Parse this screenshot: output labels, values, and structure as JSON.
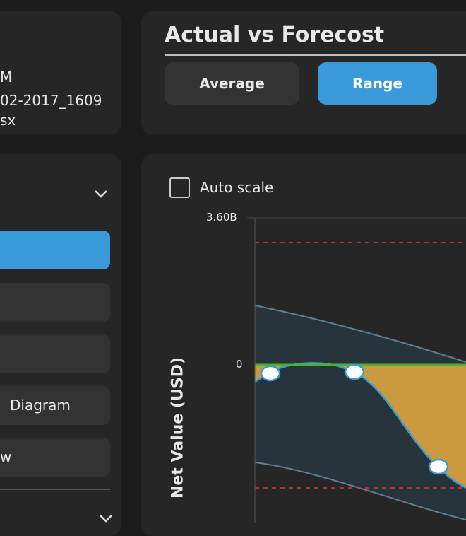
{
  "file_panel": {
    "lines": [
      "M",
      "02-2017_1609",
      "sx"
    ]
  },
  "header": {
    "title": "Actual vs Forecost",
    "buttons": [
      "Average",
      "Range"
    ]
  },
  "nav": {
    "items": [
      "Diagram",
      "w"
    ]
  },
  "chart": {
    "checkbox_label": "Auto scale",
    "yticks": [
      "3.60B",
      "0"
    ],
    "ylabel": "Net Value (USD)"
  }
}
